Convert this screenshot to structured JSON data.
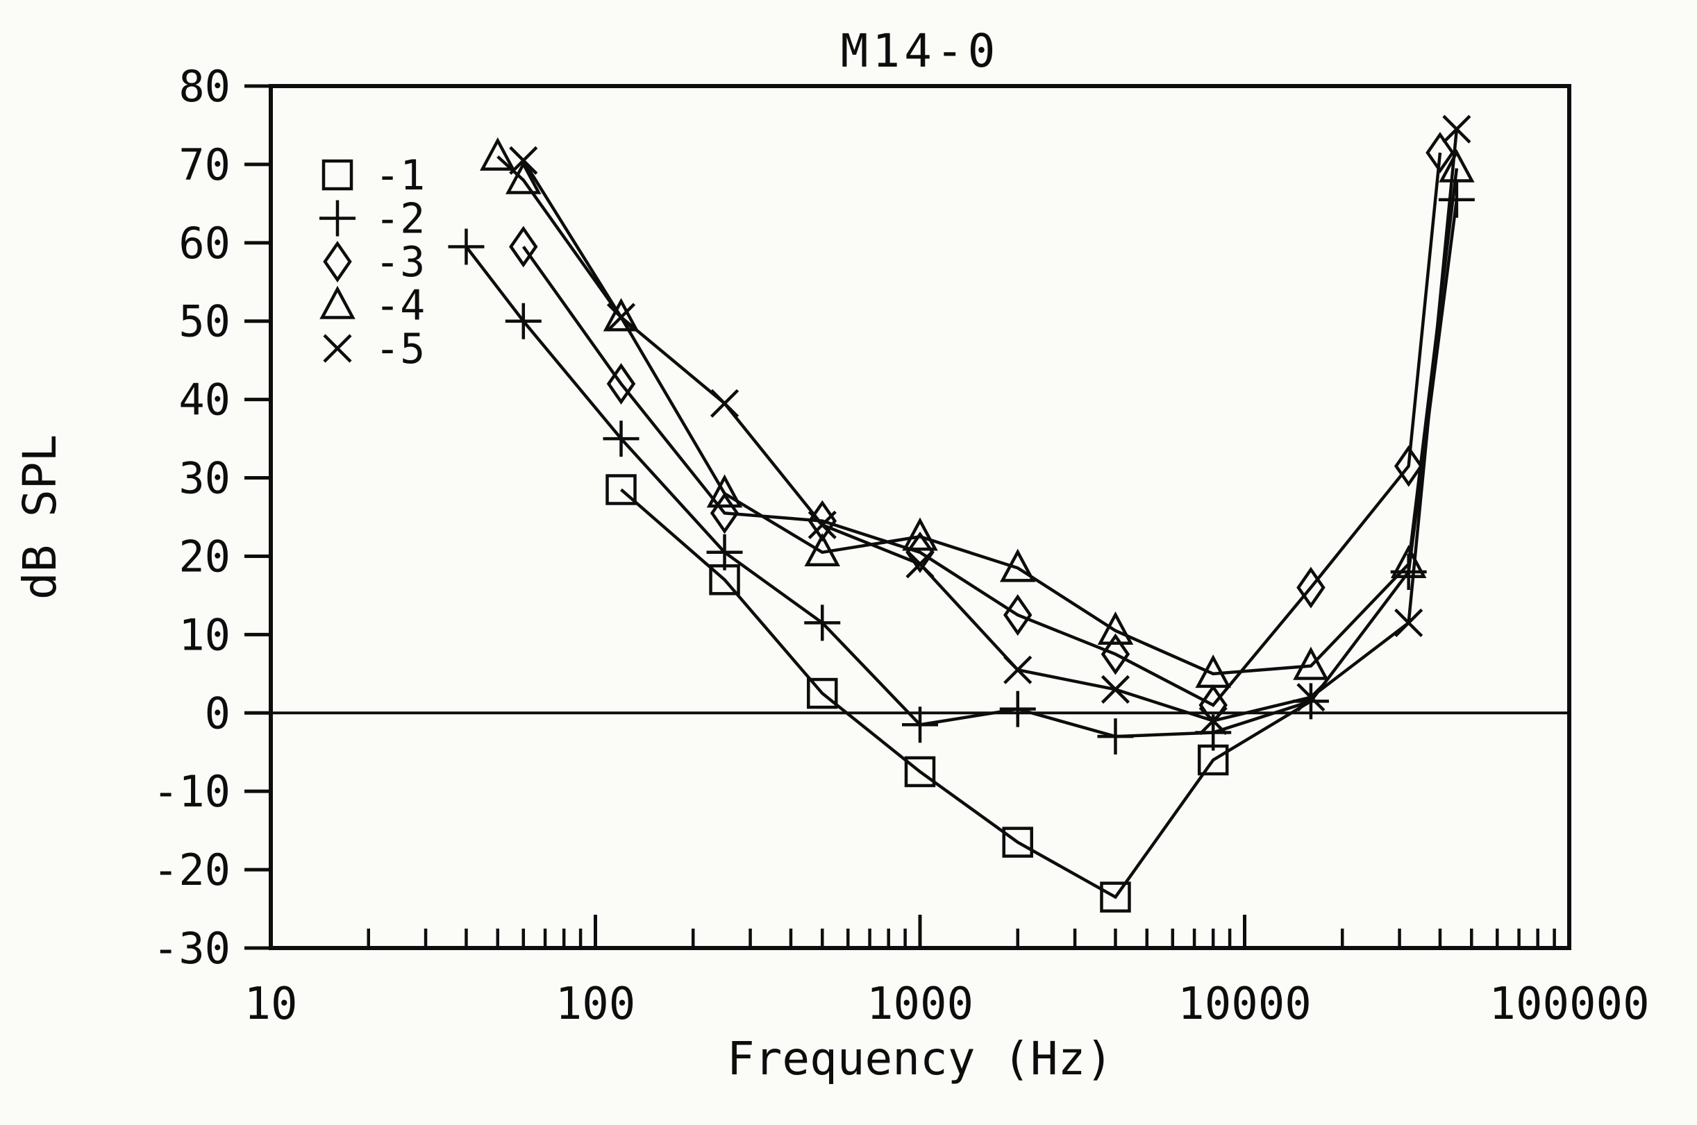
{
  "page": {
    "background": "#fbfbf8",
    "ink_color": "#0d0d0d"
  },
  "chart_data": {
    "type": "line",
    "title": "M14-0",
    "xlabel": "Frequency (Hz)",
    "ylabel": "dB SPL",
    "x_scale": "log",
    "xlim": [
      10,
      100000
    ],
    "ylim": [
      -30,
      80
    ],
    "x_ticks": [
      10,
      100,
      1000,
      10000,
      100000
    ],
    "y_ticks": [
      80,
      70,
      60,
      50,
      40,
      30,
      20,
      10,
      0,
      -10,
      -20,
      -30
    ],
    "zero_reference_line": 0,
    "grid": "off",
    "legend_position": "upper-left-inside",
    "legend": [
      {
        "marker": "square",
        "label": "-1"
      },
      {
        "marker": "plus",
        "label": "-2"
      },
      {
        "marker": "diamond",
        "label": "-3"
      },
      {
        "marker": "triangle",
        "label": "-4"
      },
      {
        "marker": "cross",
        "label": "-5"
      }
    ],
    "series": [
      {
        "name": "-1",
        "marker": "square",
        "last_point_marker": false,
        "points": [
          [
            120,
            28.5
          ],
          [
            250,
            17
          ],
          [
            500,
            2.5
          ],
          [
            1000,
            -7.5
          ],
          [
            2000,
            -16.5
          ],
          [
            4000,
            -23.5
          ],
          [
            8000,
            -6
          ],
          [
            16000,
            1.5
          ]
        ]
      },
      {
        "name": "-2",
        "marker": "plus",
        "points": [
          [
            40,
            59.5
          ],
          [
            60,
            50
          ],
          [
            120,
            35
          ],
          [
            250,
            20.5
          ],
          [
            500,
            11.5
          ],
          [
            1000,
            -1.5
          ],
          [
            2000,
            0.5
          ],
          [
            4000,
            -3
          ],
          [
            8000,
            -2.5
          ],
          [
            16000,
            1.5
          ],
          [
            32000,
            18
          ],
          [
            45000,
            65.5
          ]
        ]
      },
      {
        "name": "-3",
        "marker": "diamond",
        "points": [
          [
            60,
            59.5
          ],
          [
            120,
            42
          ],
          [
            250,
            25.5
          ],
          [
            500,
            24.5
          ],
          [
            1000,
            20.5
          ],
          [
            2000,
            12.5
          ],
          [
            4000,
            7.5
          ],
          [
            8000,
            1
          ],
          [
            16000,
            16
          ],
          [
            32000,
            31.5
          ],
          [
            40000,
            71.5
          ]
        ]
      },
      {
        "name": "-4",
        "marker": "triangle",
        "points": [
          [
            50,
            71
          ],
          [
            60,
            68
          ],
          [
            120,
            50.5
          ],
          [
            250,
            28
          ],
          [
            500,
            20.5
          ],
          [
            1000,
            22.5
          ],
          [
            2000,
            18.5
          ],
          [
            4000,
            10.5
          ],
          [
            8000,
            5
          ],
          [
            16000,
            6
          ],
          [
            32000,
            19
          ],
          [
            45000,
            69.5
          ]
        ]
      },
      {
        "name": "-5",
        "marker": "cross",
        "points": [
          [
            60,
            70.5
          ],
          [
            120,
            50.5
          ],
          [
            250,
            39.5
          ],
          [
            500,
            24
          ],
          [
            1000,
            19
          ],
          [
            2000,
            5.5
          ],
          [
            4000,
            3
          ],
          [
            8000,
            -1
          ],
          [
            16000,
            2
          ],
          [
            32000,
            11.5
          ],
          [
            45000,
            74.5
          ]
        ]
      }
    ]
  }
}
